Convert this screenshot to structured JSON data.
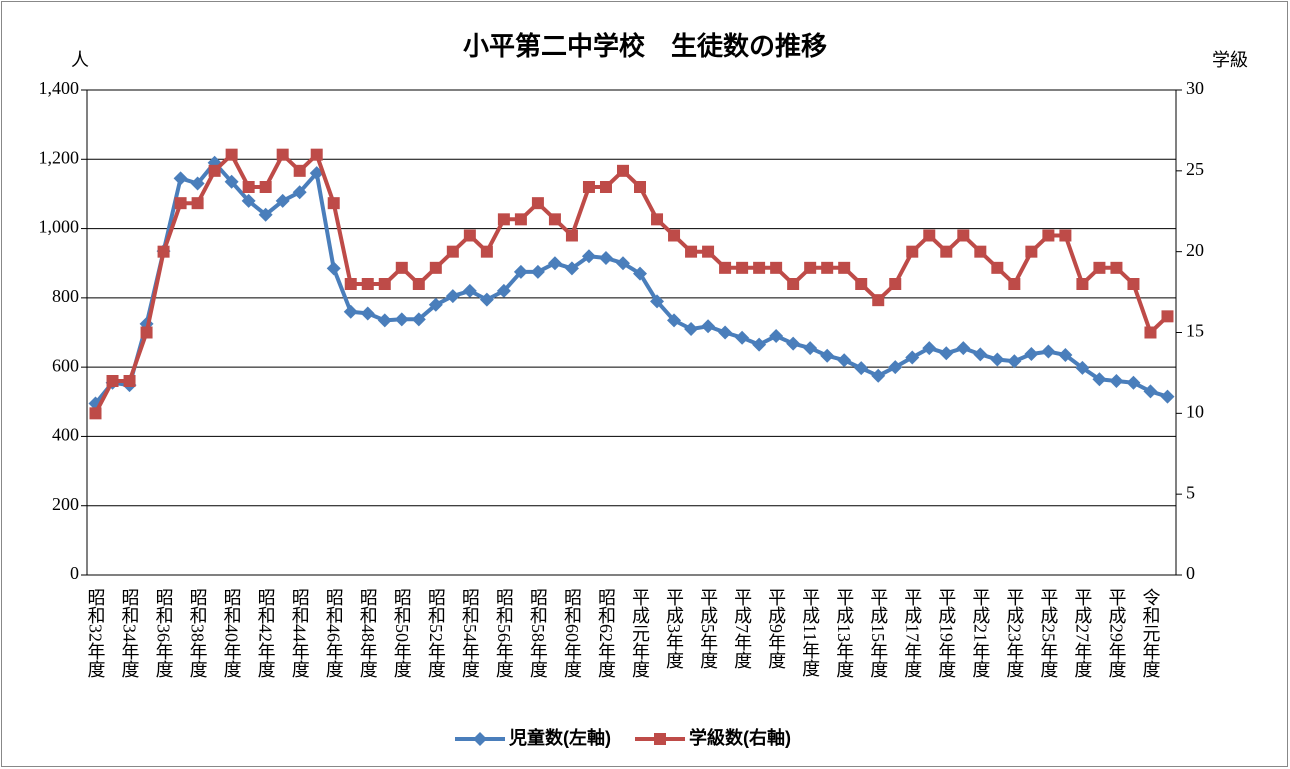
{
  "chart_data": {
    "type": "line",
    "title": "小平第二中学校　生徒数の推移",
    "y_label": "人",
    "y2_label": "学級",
    "categories": [
      "昭和32年度",
      null,
      "昭和34年度",
      null,
      "昭和36年度",
      null,
      "昭和38年度",
      null,
      "昭和40年度",
      null,
      "昭和42年度",
      null,
      "昭和44年度",
      null,
      "昭和46年度",
      null,
      "昭和48年度",
      null,
      "昭和50年度",
      null,
      "昭和52年度",
      null,
      "昭和54年度",
      null,
      "昭和56年度",
      null,
      "昭和58年度",
      null,
      "昭和60年度",
      null,
      "昭和62年度",
      null,
      "平成元年度",
      null,
      "平成3年度",
      null,
      "平成5年度",
      null,
      "平成7年度",
      null,
      "平成9年度",
      null,
      "平成11年度",
      null,
      "平成13年度",
      null,
      "平成15年度",
      null,
      "平成17年度",
      null,
      "平成19年度",
      null,
      "平成21年度",
      null,
      "平成23年度",
      null,
      "平成25年度",
      null,
      "平成27年度",
      null,
      "平成29年度",
      null,
      "令和元年度",
      null
    ],
    "series": [
      {
        "name": "児童数(左軸)",
        "color": "#4a7ebb",
        "marker": "diamond",
        "values": [
          495,
          555,
          548,
          725,
          935,
          1145,
          1130,
          1190,
          1135,
          1080,
          1040,
          1080,
          1105,
          1160,
          885,
          760,
          755,
          735,
          738,
          738,
          780,
          805,
          820,
          795,
          820,
          875,
          875,
          900,
          885,
          920,
          915,
          900,
          870,
          790,
          735,
          710,
          718,
          700,
          685,
          665,
          690,
          668,
          655,
          633,
          620,
          597,
          575,
          600,
          628,
          655,
          640,
          655,
          637,
          622,
          617,
          638,
          645,
          635,
          598,
          565,
          560,
          555,
          530,
          515
        ]
      },
      {
        "name": "学級数(右軸)",
        "color": "#be4b48",
        "marker": "square",
        "axis": "y2",
        "values": [
          10,
          12,
          12,
          15,
          20,
          23,
          23,
          25,
          26,
          24,
          24,
          26,
          25,
          26,
          23,
          18,
          18,
          18,
          19,
          18,
          19,
          20,
          21,
          20,
          22,
          22,
          23,
          22,
          21,
          24,
          24,
          25,
          24,
          22,
          21,
          20,
          20,
          19,
          19,
          19,
          19,
          18,
          19,
          19,
          19,
          18,
          17,
          18,
          20,
          21,
          20,
          21,
          20,
          19,
          18,
          20,
          21,
          21,
          18,
          19,
          19,
          18,
          15,
          16
        ]
      }
    ],
    "ylim": [
      0,
      1400
    ],
    "yticks": [
      0,
      200,
      400,
      600,
      800,
      {
        "value": 1000,
        "label": "1,000"
      },
      {
        "value": 1200,
        "label": "1,200"
      },
      {
        "value": 1400,
        "label": "1,400"
      }
    ],
    "y2lim": [
      0,
      30
    ],
    "y2ticks": [
      0,
      5,
      10,
      15,
      20,
      25,
      30
    ],
    "grid": true,
    "legend": "bottom"
  }
}
